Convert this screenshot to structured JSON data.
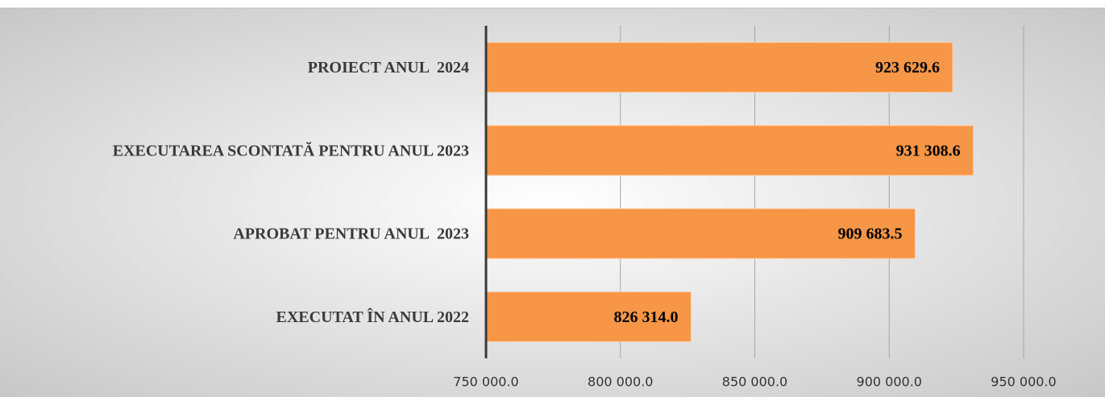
{
  "chart_data": {
    "type": "bar",
    "orientation": "horizontal",
    "categories": [
      "PROIECT ANUL  2024",
      "EXECUTAREA SCONTATĂ PENTRU ANUL 2023",
      "APROBAT PENTRU ANUL  2023",
      "EXECUTAT ÎN ANUL 2022"
    ],
    "values": [
      923629.6,
      931308.6,
      909683.5,
      826314.0
    ],
    "value_labels": [
      "923 629.6",
      "931 308.6",
      "909 683.5",
      "826 314.0"
    ],
    "color": "#f79646",
    "xlim": [
      750000,
      950000
    ],
    "xticks": [
      {
        "value": 750000,
        "label": "750 000.0"
      },
      {
        "value": 800000,
        "label": "800 000.0"
      },
      {
        "value": 850000,
        "label": "850 000.0"
      },
      {
        "value": 900000,
        "label": "900 000.0"
      },
      {
        "value": 950000,
        "label": "950 000.0"
      }
    ],
    "grid": true
  }
}
